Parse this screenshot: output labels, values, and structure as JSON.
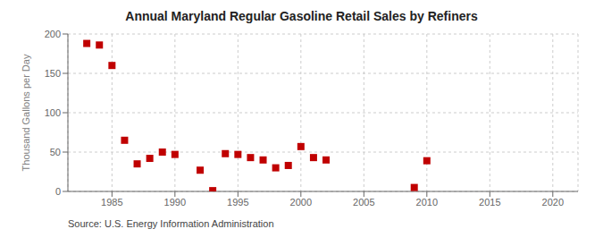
{
  "chart_data": {
    "type": "scatter",
    "title": "Annual Maryland Regular Gasoline Retail Sales by Refiners",
    "ylabel": "Thousand Gallons per Day",
    "annotation": "Source: U.S. Energy Information Administration",
    "x": [
      1983,
      1984,
      1985,
      1986,
      1987,
      1988,
      1989,
      1990,
      1992,
      1993,
      1994,
      1995,
      1996,
      1997,
      1998,
      1999,
      2000,
      2001,
      2002,
      2009,
      2010
    ],
    "values": [
      188,
      186,
      160,
      65,
      35,
      42,
      50,
      47,
      27,
      1,
      48,
      47,
      43,
      40,
      30,
      33,
      57,
      43,
      40,
      5,
      39
    ],
    "color": "#c00000",
    "marker": "square",
    "xlim": [
      1981.5,
      2022
    ],
    "ylim": [
      0,
      200
    ],
    "xticks": [
      1985,
      1990,
      1995,
      2000,
      2005,
      2010,
      2015,
      2020
    ],
    "yticks": [
      0,
      50,
      100,
      150,
      200
    ],
    "grid": true
  }
}
